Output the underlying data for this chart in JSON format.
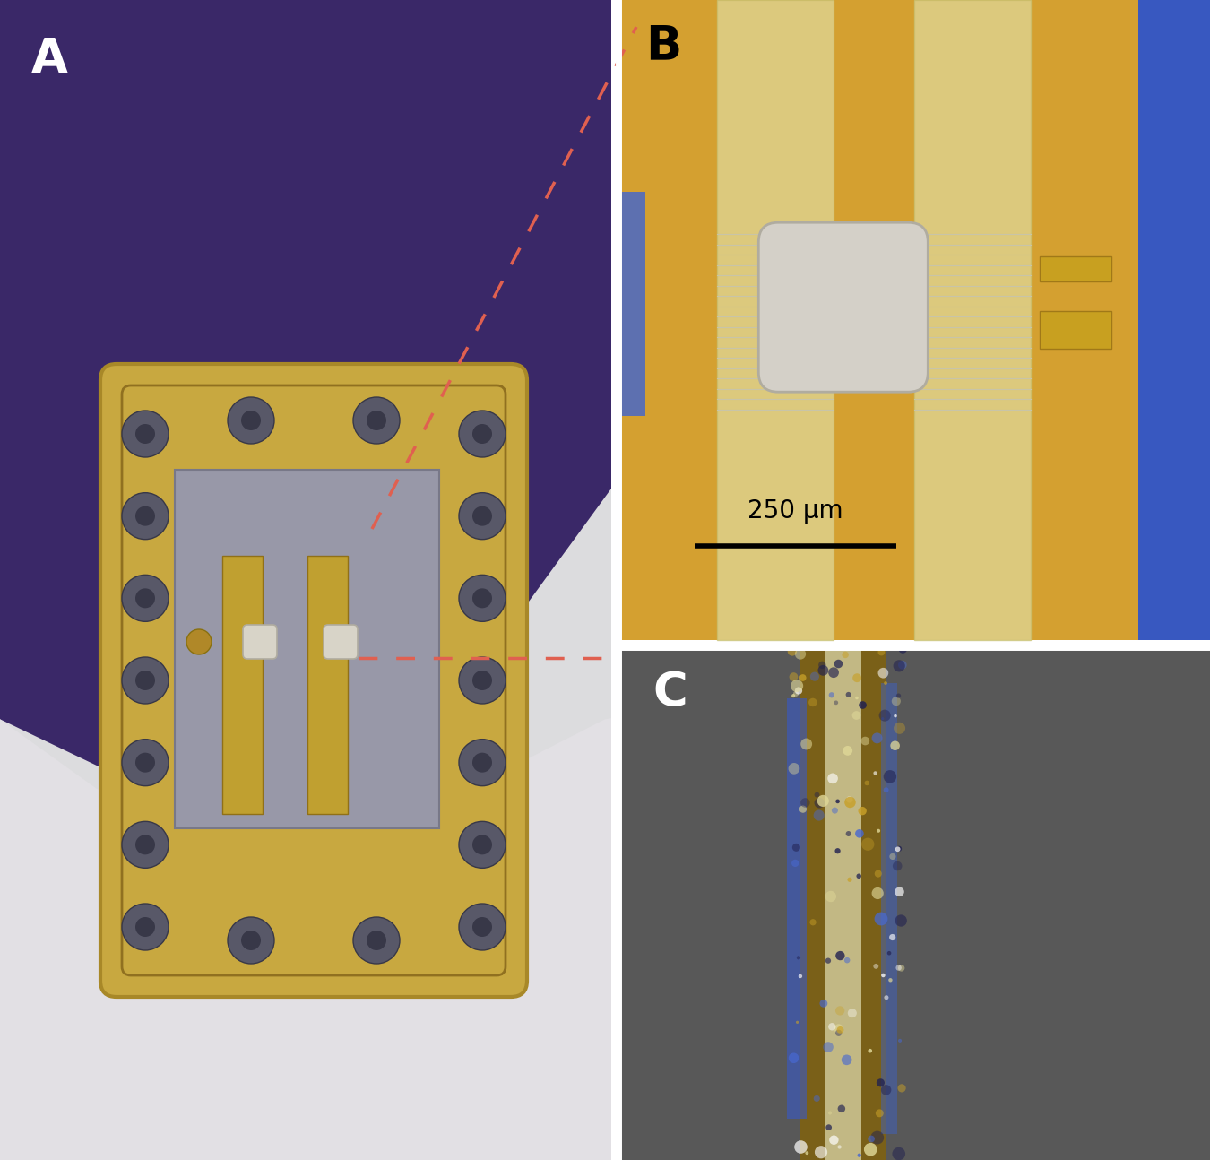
{
  "fig_width": 13.5,
  "fig_height": 12.94,
  "bg_white": "#e8e8e8",
  "panel_A": {
    "label": "A",
    "purple": "#3a2868",
    "light_gray": "#d8d8dc",
    "white_bg": "#e0dfe2",
    "chip_gold": "#c8a848",
    "chip_gold_dark": "#b09030",
    "inner_silver": "#a0a0b0",
    "screw_gray": "#5a5a6a",
    "label_fontsize": 38
  },
  "panel_B": {
    "label": "B",
    "orange_bg": "#d4a030",
    "pale_arm": "#e8dfa0",
    "blue_edge": "#3858c0",
    "mems_pale": "#d0cdc0",
    "scale_text": "250 μm",
    "label_fontsize": 38,
    "scale_fontsize": 20
  },
  "panel_C": {
    "label": "C",
    "dark_bg": "#5a5a5a",
    "hair_gold": "#a07818",
    "hair_white": "#d8d0a8",
    "hair_blue": "#3858c8",
    "label_fontsize": 38
  },
  "dashed_color": "#e06050",
  "dashed_lw": 2.5
}
